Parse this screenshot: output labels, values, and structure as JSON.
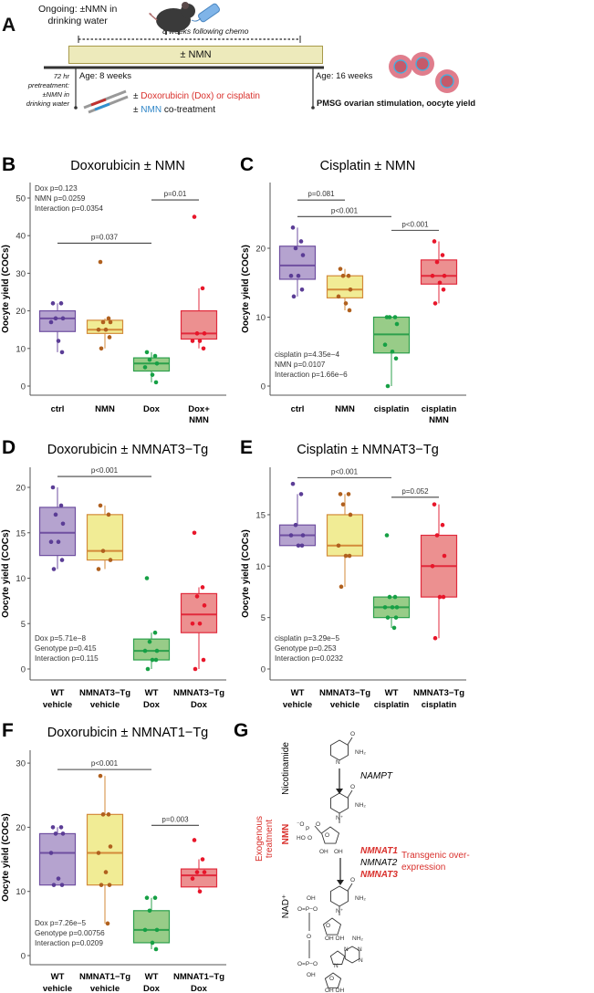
{
  "panel_a": {
    "letter": "A",
    "ongoing_line1": "Ongoing: ±NMN in",
    "ongoing_line2": "drinking water",
    "duration": "8 weeks following chemo",
    "bar_label": "± NMN",
    "pre_line1": "72 hr",
    "pre_line2": "pretreatment:",
    "pre_line3": "±NMN in",
    "pre_line4": "drinking water",
    "age_start": "Age: 8 weeks",
    "age_end": "Age: 16 weeks",
    "treat_pm1": "± ",
    "treat_chemo": "Doxorubicin (Dox) or cisplatin",
    "treat_pm2": "± ",
    "treat_nmn": "NMN",
    "treat_co": " co-treatment",
    "endpoint": "PMSG ovarian stimulation, oocyte yield",
    "colors": {
      "chemo": "#d9302c",
      "nmn": "#2f86c8",
      "bar": "#edeabb"
    }
  },
  "chart_data": [
    {
      "panel": "B",
      "type": "box",
      "title": "Doxorubicin ± NMN",
      "ylabel": "Oocyte yield (COCs)",
      "ylim": [
        0,
        55
      ],
      "yticks": [
        0,
        10,
        20,
        30,
        40,
        50
      ],
      "categories": [
        [
          "ctrl"
        ],
        [
          "NMN"
        ],
        [
          "Dox"
        ],
        [
          "Dox+",
          "NMN"
        ]
      ],
      "groups": [
        {
          "q1": 14.5,
          "median": 18,
          "q3": 20,
          "points": [
            22,
            22,
            18,
            18,
            17,
            12,
            9
          ]
        },
        {
          "q1": 14,
          "median": 15,
          "q3": 17.5,
          "points": [
            33,
            18,
            17,
            17,
            15,
            15,
            13,
            10
          ]
        },
        {
          "q1": 4,
          "median": 6,
          "q3": 7.5,
          "points": [
            9,
            8,
            7,
            6,
            5,
            3,
            1
          ]
        },
        {
          "q1": 12.5,
          "median": 14,
          "q3": 20,
          "points": [
            45,
            26,
            14,
            14,
            12,
            12,
            10
          ]
        }
      ],
      "brackets": [
        {
          "from": 0,
          "to": 2,
          "y": 38,
          "label": "p=0.037"
        },
        {
          "from": 2,
          "to": 3,
          "y": 49.5,
          "label": "p=0.01"
        }
      ],
      "stats": [
        "Dox p=0.123",
        "NMN p=0.0259",
        "Interaction p=0.0354"
      ],
      "stats_position": "top-left"
    },
    {
      "panel": "C",
      "type": "box",
      "title": "Cisplatin ± NMN",
      "ylabel": "Oocyte yield (COCs)",
      "ylim": [
        0,
        29
      ],
      "yticks": [
        0,
        10,
        20
      ],
      "categories": [
        [
          "ctrl"
        ],
        [
          "NMN"
        ],
        [
          "cisplatin"
        ],
        [
          "cisplatin",
          "NMN"
        ]
      ],
      "groups": [
        {
          "q1": 15.5,
          "median": 17.5,
          "q3": 20.3,
          "points": [
            23,
            21,
            20,
            19,
            16,
            16,
            14,
            13
          ]
        },
        {
          "q1": 12.8,
          "median": 14,
          "q3": 16,
          "points": [
            17,
            16,
            16,
            14,
            13,
            12,
            11
          ]
        },
        {
          "q1": 4.8,
          "median": 7.5,
          "q3": 10,
          "points": [
            10,
            10,
            10,
            9,
            6,
            5,
            4,
            0
          ]
        },
        {
          "q1": 14.8,
          "median": 16,
          "q3": 18.3,
          "points": [
            21,
            19,
            18,
            16,
            16,
            15,
            14,
            12
          ]
        }
      ],
      "brackets": [
        {
          "from": 0,
          "to": 1,
          "y": 27,
          "label": "p=0.081"
        },
        {
          "from": 0,
          "to": 2,
          "y": 24.6,
          "label": "p<0.001"
        },
        {
          "from": 2,
          "to": 3,
          "y": 22.6,
          "label": "p<0.001"
        }
      ],
      "stats": [
        "cisplatin p=4.35e−4",
        "NMN p=0.0107",
        "Interaction p=1.66e−6"
      ],
      "stats_position": "bottom-left"
    },
    {
      "panel": "D",
      "type": "box",
      "title": "Doxorubicin ± NMNAT3−Tg",
      "ylabel": "Oocyte yield (COCs)",
      "ylim": [
        0,
        22
      ],
      "yticks": [
        0,
        5,
        10,
        15,
        20
      ],
      "categories": [
        [
          "WT",
          "vehicle"
        ],
        [
          "NMNAT3−Tg",
          "vehicle"
        ],
        [
          "WT",
          "Dox"
        ],
        [
          "NMNAT3−Tg",
          "Dox"
        ]
      ],
      "groups": [
        {
          "q1": 12.5,
          "median": 15,
          "q3": 17.8,
          "points": [
            20,
            18,
            17,
            16,
            14,
            14,
            12,
            11
          ]
        },
        {
          "q1": 12,
          "median": 13,
          "q3": 17,
          "points": [
            18,
            17,
            13,
            12,
            11
          ]
        },
        {
          "q1": 1,
          "median": 2,
          "q3": 3.3,
          "points": [
            10,
            4,
            3,
            2,
            2,
            1,
            1,
            0
          ]
        },
        {
          "q1": 4,
          "median": 6,
          "q3": 8.3,
          "points": [
            15,
            9,
            8,
            7,
            5,
            5,
            1,
            0
          ]
        }
      ],
      "brackets": [
        {
          "from": 0,
          "to": 2,
          "y": 21.2,
          "label": "p<0.001"
        }
      ],
      "stats": [
        "Dox p=5.71e−8",
        "Genotype p=0.415",
        "Interaction p=0.115"
      ],
      "stats_position": "bottom-left"
    },
    {
      "panel": "E",
      "type": "box",
      "title": "Cisplatin ± NMNAT3−Tg",
      "ylabel": "Oocyte yield (COCs)",
      "ylim": [
        0,
        19
      ],
      "yticks": [
        0,
        5,
        10,
        15
      ],
      "categories": [
        [
          "WT",
          "vehicle"
        ],
        [
          "NMNAT3−Tg",
          "vehicle"
        ],
        [
          "WT",
          "cisplatin"
        ],
        [
          "NMNAT3−Tg",
          "cisplatin"
        ]
      ],
      "groups": [
        {
          "q1": 12,
          "median": 13,
          "q3": 14,
          "points": [
            18,
            17,
            14,
            13,
            13,
            12,
            12
          ]
        },
        {
          "q1": 11,
          "median": 12,
          "q3": 15,
          "points": [
            17,
            17,
            16,
            15,
            12,
            11,
            11,
            8
          ]
        },
        {
          "q1": 5,
          "median": 6,
          "q3": 7,
          "points": [
            13,
            7,
            7,
            6,
            6,
            6,
            5,
            5,
            4
          ]
        },
        {
          "q1": 7,
          "median": 10,
          "q3": 13,
          "points": [
            16,
            14,
            13,
            11,
            10,
            7,
            7,
            3
          ]
        }
      ],
      "brackets": [
        {
          "from": 0,
          "to": 2,
          "y": 18.6,
          "label": "p<0.001"
        },
        {
          "from": 2,
          "to": 3,
          "y": 16.7,
          "label": "p=0.052"
        }
      ],
      "stats": [
        "cisplatin p=3.29e−5",
        "Genotype p=0.253",
        "Interaction p=0.0232"
      ],
      "stats_position": "bottom-left"
    },
    {
      "panel": "F",
      "type": "box",
      "title": "Doxorubicin ± NMNAT1−Tg",
      "ylabel": "Oocyte yield (COCs)",
      "ylim": [
        0,
        32
      ],
      "yticks": [
        0,
        10,
        20,
        30
      ],
      "categories": [
        [
          "WT",
          "vehicle"
        ],
        [
          "NMNAT1−Tg",
          "vehicle"
        ],
        [
          "WT",
          "Dox"
        ],
        [
          "NMNAT1−Tg",
          "Dox"
        ]
      ],
      "groups": [
        {
          "q1": 11,
          "median": 16,
          "q3": 19,
          "points": [
            20,
            20,
            19,
            19,
            16,
            12,
            11,
            11
          ]
        },
        {
          "q1": 11,
          "median": 16,
          "q3": 22,
          "points": [
            28,
            22,
            22,
            17,
            16,
            13,
            11,
            11,
            5
          ]
        },
        {
          "q1": 2,
          "median": 4,
          "q3": 7,
          "points": [
            9,
            9,
            7,
            4,
            4,
            2,
            1
          ]
        },
        {
          "q1": 10.7,
          "median": 12.5,
          "q3": 13.5,
          "points": [
            18,
            15,
            13,
            13,
            12,
            10
          ]
        }
      ],
      "brackets": [
        {
          "from": 0,
          "to": 2,
          "y": 29,
          "label": "p<0.001"
        },
        {
          "from": 2,
          "to": 3,
          "y": 20.3,
          "label": "p=0.003"
        }
      ],
      "stats": [
        "Dox p=7.26e−5",
        "Genotype p=0.00756",
        "Interaction p=0.0209"
      ],
      "stats_position": "bottom-left"
    }
  ],
  "group_colors": [
    {
      "fill": "#b5a3cf",
      "line": "#6f4fa0",
      "point": "#5b3d96"
    },
    {
      "fill": "#f1ec95",
      "line": "#d38a3a",
      "point": "#b0601e"
    },
    {
      "fill": "#98cc88",
      "line": "#2da04c",
      "point": "#16a045"
    },
    {
      "fill": "#ec9090",
      "line": "#e12a3c",
      "point": "#e8162a"
    }
  ],
  "panel_g": {
    "letter": "G",
    "nicotinamide": "Nicotinamide",
    "nampt": "NAMPT",
    "exogenous_line1": "Exogenous",
    "exogenous_line2": "treatment",
    "nmn": "NMN",
    "nmnat1": "NMNAT1",
    "nmnat2": "NMNAT2",
    "nmnat3": "NMNAT3",
    "transgenic_line1": "Transgenic over-",
    "transgenic_line2": "expression",
    "nad": "NAD⁺",
    "atoms": [
      "O",
      "NH₂",
      "N",
      "O",
      "NH₂",
      "N⁺",
      "⁻O",
      "P",
      "O",
      "HO",
      "O",
      "O",
      "OH",
      "OH",
      "O",
      "NH₂",
      "N⁺",
      "OH",
      "O=P−O",
      "O",
      "O=P−O",
      "OH",
      "OH OH",
      "O",
      "NH₂",
      "N",
      "N",
      "N",
      "N",
      "O",
      "OH OH"
    ]
  }
}
